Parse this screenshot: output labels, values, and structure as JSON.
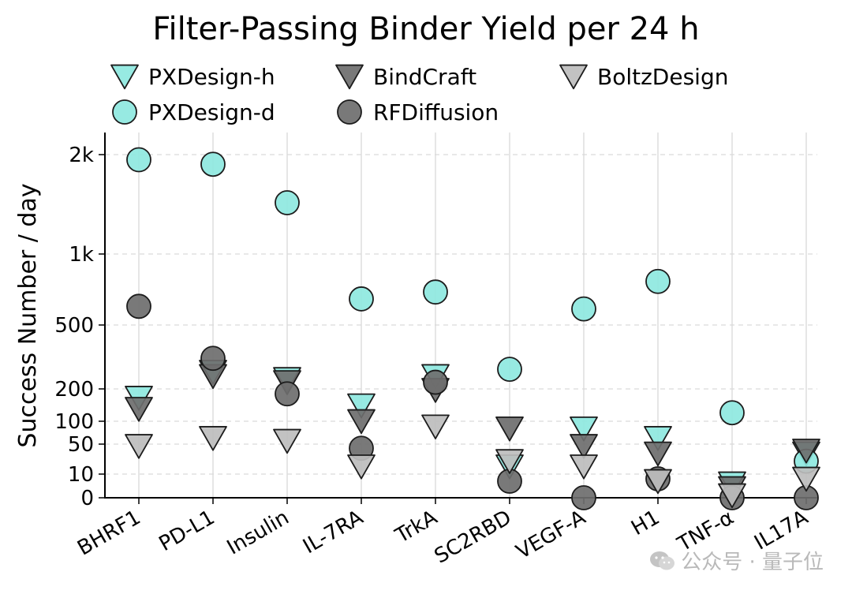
{
  "chart_data": {
    "type": "scatter",
    "title": "Filter-Passing Binder Yield per 24 h",
    "xlabel": "",
    "ylabel": "Success Number / day",
    "y_scale": "symlog",
    "y_ticks": [
      0,
      10,
      50,
      100,
      200,
      500,
      1000,
      2000
    ],
    "y_tick_labels": [
      "0",
      "10",
      "50",
      "100",
      "200",
      "500",
      "1k",
      "2k"
    ],
    "ylim": [
      0,
      2400
    ],
    "grid": "horizontal dashed, vertical solid per category",
    "legend_position": "top",
    "categories": [
      "BHRF1",
      "PD-L1",
      "Insulin",
      "IL-7RA",
      "TrkA",
      "SC2RBD",
      "VEGF-A",
      "H1",
      "TNF-α",
      "IL17A"
    ],
    "series": [
      {
        "name": "PXDesign-h",
        "marker": "triangle-down",
        "color": "#8ee8e0",
        "values": [
          165,
          255,
          230,
          140,
          240,
          15,
          80,
          60,
          6,
          30
        ]
      },
      {
        "name": "PXDesign-d",
        "marker": "circle",
        "color": "#8ee8e0",
        "values": [
          1930,
          1870,
          1430,
          645,
          690,
          265,
          585,
          765,
          120,
          20
        ]
      },
      {
        "name": "BindCraft",
        "marker": "triangle-down",
        "color": "#6e6e6e",
        "values": [
          130,
          240,
          220,
          100,
          195,
          80,
          45,
          30,
          4,
          35
        ]
      },
      {
        "name": "RFDiffusion",
        "marker": "circle",
        "color": "#6e6e6e",
        "values": [
          600,
          310,
          180,
          40,
          220,
          7,
          0,
          8,
          0,
          0
        ]
      },
      {
        "name": "BoltzDesign",
        "marker": "triangle-down",
        "color": "#bdbdbd",
        "values": [
          45,
          60,
          55,
          15,
          85,
          20,
          15,
          7,
          1,
          8
        ]
      }
    ]
  },
  "watermark": {
    "text": "公众号 · 量子位",
    "icon": "wechat-icon"
  }
}
